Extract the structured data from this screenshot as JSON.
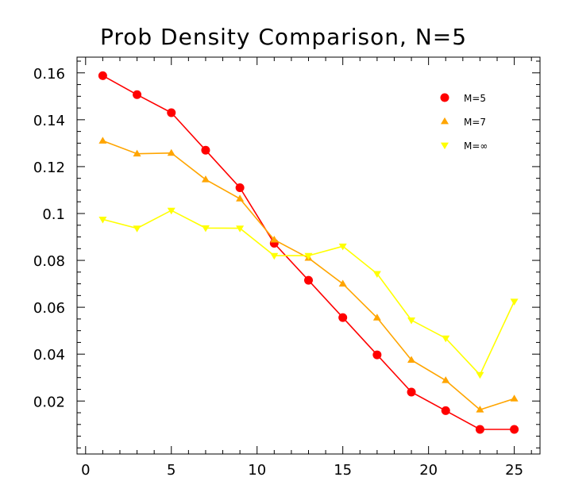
{
  "chart_data": {
    "type": "line",
    "title": "Prob Density Comparison, N=5",
    "xlabel": "",
    "ylabel": "",
    "xlim": [
      -0.5,
      26.5
    ],
    "ylim": [
      -0.0026,
      0.1667
    ],
    "grid": false,
    "legend_position": "top-right",
    "x_ticks": [
      0,
      5,
      10,
      15,
      20,
      25
    ],
    "x_tick_labels": [
      "0",
      "5",
      "10",
      "15",
      "20",
      "25"
    ],
    "y_ticks": [
      0.02,
      0.04,
      0.06,
      0.08,
      0.1,
      0.12,
      0.14,
      0.16
    ],
    "y_tick_labels": [
      "0.02",
      "0.04",
      "0.06",
      "0.08",
      "0.1",
      "0.12",
      "0.14",
      "0.16"
    ],
    "x": [
      1,
      3,
      5,
      7,
      9,
      11,
      13,
      15,
      17,
      19,
      21,
      23,
      25
    ],
    "series": [
      {
        "name": "M=5",
        "marker": "circle",
        "color": "#ff0000",
        "values": [
          0.1588,
          0.1507,
          0.143,
          0.127,
          0.111,
          0.0873,
          0.0715,
          0.0556,
          0.0397,
          0.0238,
          0.0159,
          0.0079,
          0.0079
        ]
      },
      {
        "name": "M=7",
        "marker": "triangle-up",
        "color": "#ffa500",
        "values": [
          0.131,
          0.1255,
          0.1258,
          0.1145,
          0.1063,
          0.0888,
          0.081,
          0.07,
          0.0555,
          0.0375,
          0.0288,
          0.0163,
          0.021
        ]
      },
      {
        "name": "M=∞",
        "marker": "triangle-down",
        "color": "#ffff00",
        "values": [
          0.0975,
          0.0937,
          0.1013,
          0.0938,
          0.0937,
          0.082,
          0.082,
          0.086,
          0.0743,
          0.0545,
          0.0468,
          0.0312,
          0.0625
        ]
      }
    ]
  }
}
